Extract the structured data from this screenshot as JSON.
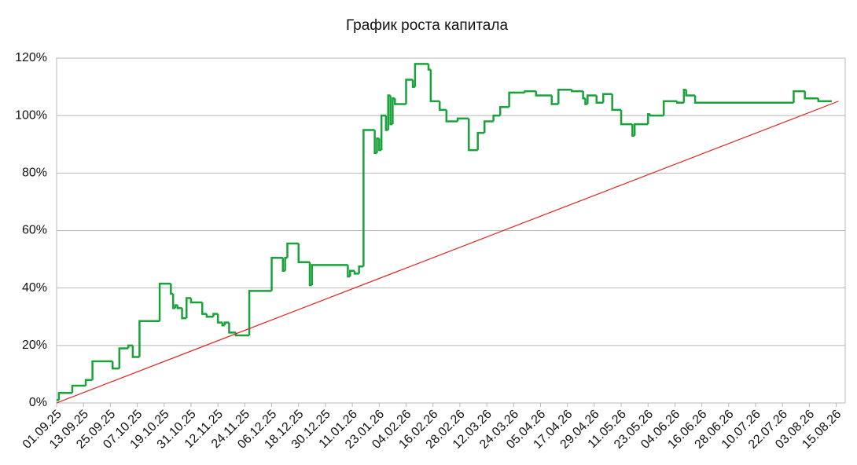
{
  "chart_data": {
    "type": "line",
    "title": "График роста капитала",
    "step": true,
    "xlim": [
      "01.09.25",
      "19.08.26"
    ],
    "xticks": [
      "01.09.25",
      "13.09.25",
      "25.09.25",
      "07.10.25",
      "19.10.25",
      "31.10.25",
      "12.11.25",
      "24.11.25",
      "06.12.25",
      "18.12.25",
      "30.12.25",
      "11.01.26",
      "23.01.26",
      "04.02.26",
      "16.02.26",
      "28.02.26",
      "12.03.26",
      "24.03.26",
      "05.04.26",
      "17.04.26",
      "29.04.26",
      "11.05.26",
      "23.05.26",
      "04.06.26",
      "16.06.26",
      "28.06.26",
      "10.07.26",
      "22.07.26",
      "03.08.26",
      "15.08.26"
    ],
    "ylim": [
      0,
      120
    ],
    "yticks": [
      {
        "value": 0,
        "label": "0%"
      },
      {
        "value": 20,
        "label": "20%"
      },
      {
        "value": 40,
        "label": "40%"
      },
      {
        "value": 60,
        "label": "60%"
      },
      {
        "value": 80,
        "label": "80%"
      },
      {
        "value": 100,
        "label": "100%"
      },
      {
        "value": 120,
        "label": "120%"
      }
    ],
    "grid": true,
    "series": [
      {
        "color": "#1aa23a",
        "step": true,
        "x": [
          "01.09.25",
          "02.09.25",
          "08.09.25",
          "14.09.25",
          "17.09.25",
          "26.09.25",
          "29.09.25",
          "03.10.25",
          "05.10.25",
          "08.10.25",
          "17.10.25",
          "22.10.25",
          "23.10.25",
          "24.10.25",
          "25.10.25",
          "27.10.25",
          "29.10.25",
          "31.10.25",
          "05.11.25",
          "07.11.25",
          "10.11.25",
          "12.11.25",
          "14.11.25",
          "15.11.25",
          "17.11.25",
          "20.11.25",
          "26.11.25",
          "06.12.25",
          "11.12.25",
          "12.12.25",
          "13.12.25",
          "18.12.25",
          "23.12.25",
          "24.12.25",
          "09.01.26",
          "10.01.26",
          "12.01.26",
          "14.01.26",
          "16.01.26",
          "21.01.26",
          "22.01.26",
          "23.01.26",
          "24.01.26",
          "26.01.26",
          "27.01.26",
          "28.01.26",
          "29.01.26",
          "30.01.26",
          "04.02.26",
          "07.02.26",
          "08.02.26",
          "14.02.26",
          "15.02.26",
          "19.02.26",
          "22.02.26",
          "27.02.26",
          "04.03.26",
          "08.03.26",
          "11.03.26",
          "15.03.26",
          "18.03.26",
          "22.03.26",
          "29.03.26",
          "03.04.26",
          "10.04.26",
          "13.04.26",
          "19.04.26",
          "24.04.26",
          "25.04.26",
          "26.04.26",
          "30.04.26",
          "03.05.26",
          "07.05.26",
          "11.05.26",
          "16.05.26",
          "17.05.26",
          "23.05.26",
          "24.05.26",
          "30.05.26",
          "05.06.26",
          "08.06.26",
          "09.06.26",
          "13.06.26",
          "27.07.26",
          "01.08.26",
          "07.08.26",
          "13.08.26"
        ],
        "values": [
          1,
          3.5,
          6,
          8,
          14.5,
          12,
          19,
          20,
          16,
          28.5,
          41.5,
          38,
          33,
          34,
          33,
          29.5,
          36.5,
          35,
          31,
          30,
          31,
          28,
          27,
          28,
          24.5,
          23.5,
          39,
          50.5,
          46,
          50.5,
          55.5,
          49,
          41,
          48,
          44,
          46,
          45,
          47.5,
          95,
          87,
          92,
          88,
          100,
          95,
          107,
          97,
          106,
          104,
          112.5,
          110,
          118,
          116,
          105,
          102,
          98,
          99,
          88,
          94,
          98,
          100,
          103,
          108,
          108.5,
          107,
          104,
          109,
          108.5,
          106,
          104,
          107,
          104.5,
          107.5,
          102,
          97,
          93,
          97,
          100.5,
          100,
          105,
          104.5,
          109,
          107,
          104.5,
          108.5,
          106,
          105,
          105
        ]
      },
      {
        "color": "#e02020",
        "step": false,
        "x": [
          "01.09.25",
          "16.08.26"
        ],
        "values": [
          0,
          105
        ]
      }
    ]
  }
}
